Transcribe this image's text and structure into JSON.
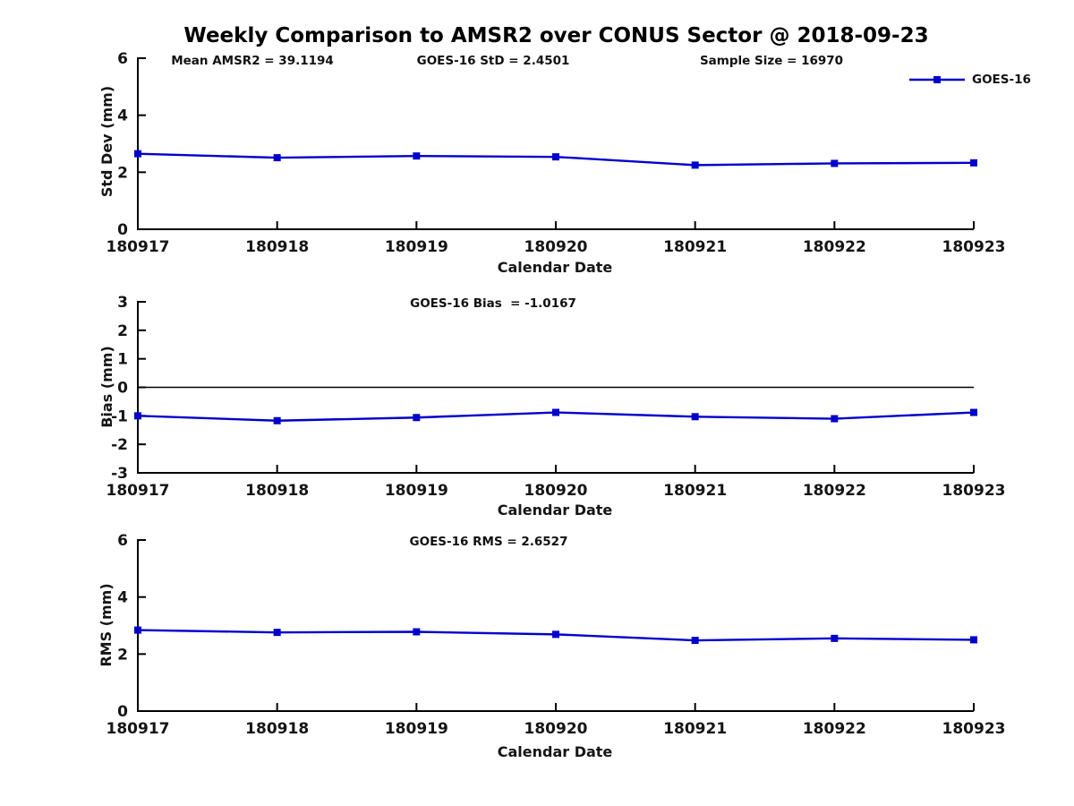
{
  "title": "Weekly Comparison to AMSR2 over CONUS Sector @ 2018-09-23",
  "colors": {
    "series": "#0000CC",
    "axis": "#000000",
    "text": "#111111"
  },
  "legend": {
    "label": "GOES-16"
  },
  "chart_data": [
    {
      "type": "line",
      "name": "std-dev",
      "ylabel": "Std Dev (mm)",
      "xlabel": "Calendar Date",
      "categories": [
        "180917",
        "180918",
        "180919",
        "180920",
        "180921",
        "180922",
        "180923"
      ],
      "series": [
        {
          "name": "GOES-16",
          "color": "#0000CC",
          "marker": "square",
          "values": [
            2.65,
            2.51,
            2.57,
            2.54,
            2.25,
            2.31,
            2.33
          ]
        }
      ],
      "ylim": [
        0,
        6
      ],
      "yticks": [
        0,
        2,
        4,
        6
      ],
      "grid": false,
      "zero_line": false,
      "legend_position": "top-right",
      "annotations": [
        "Mean AMSR2 = 39.1194",
        "GOES-16 StD = 2.4501",
        "Sample Size = 16970"
      ]
    },
    {
      "type": "line",
      "name": "bias",
      "ylabel": "Bias (mm)",
      "xlabel": "Calendar Date",
      "categories": [
        "180917",
        "180918",
        "180919",
        "180920",
        "180921",
        "180922",
        "180923"
      ],
      "series": [
        {
          "name": "GOES-16",
          "color": "#0000CC",
          "marker": "square",
          "values": [
            -1.0,
            -1.17,
            -1.06,
            -0.88,
            -1.03,
            -1.1,
            -0.88
          ]
        }
      ],
      "ylim": [
        -3,
        3
      ],
      "yticks": [
        3,
        2,
        1,
        0,
        -1,
        -2,
        -3
      ],
      "grid": false,
      "zero_line": true,
      "annotations": [
        "GOES-16 Bias  = -1.0167"
      ]
    },
    {
      "type": "line",
      "name": "rms",
      "ylabel": "RMS (mm)",
      "xlabel": "Calendar Date",
      "categories": [
        "180917",
        "180918",
        "180919",
        "180920",
        "180921",
        "180922",
        "180923"
      ],
      "series": [
        {
          "name": "GOES-16",
          "color": "#0000CC",
          "marker": "square",
          "values": [
            2.84,
            2.76,
            2.78,
            2.69,
            2.48,
            2.55,
            2.5
          ]
        }
      ],
      "ylim": [
        0,
        6
      ],
      "yticks": [
        0,
        2,
        4,
        6
      ],
      "grid": false,
      "zero_line": false,
      "annotations": [
        "GOES-16 RMS = 2.6527"
      ]
    }
  ]
}
